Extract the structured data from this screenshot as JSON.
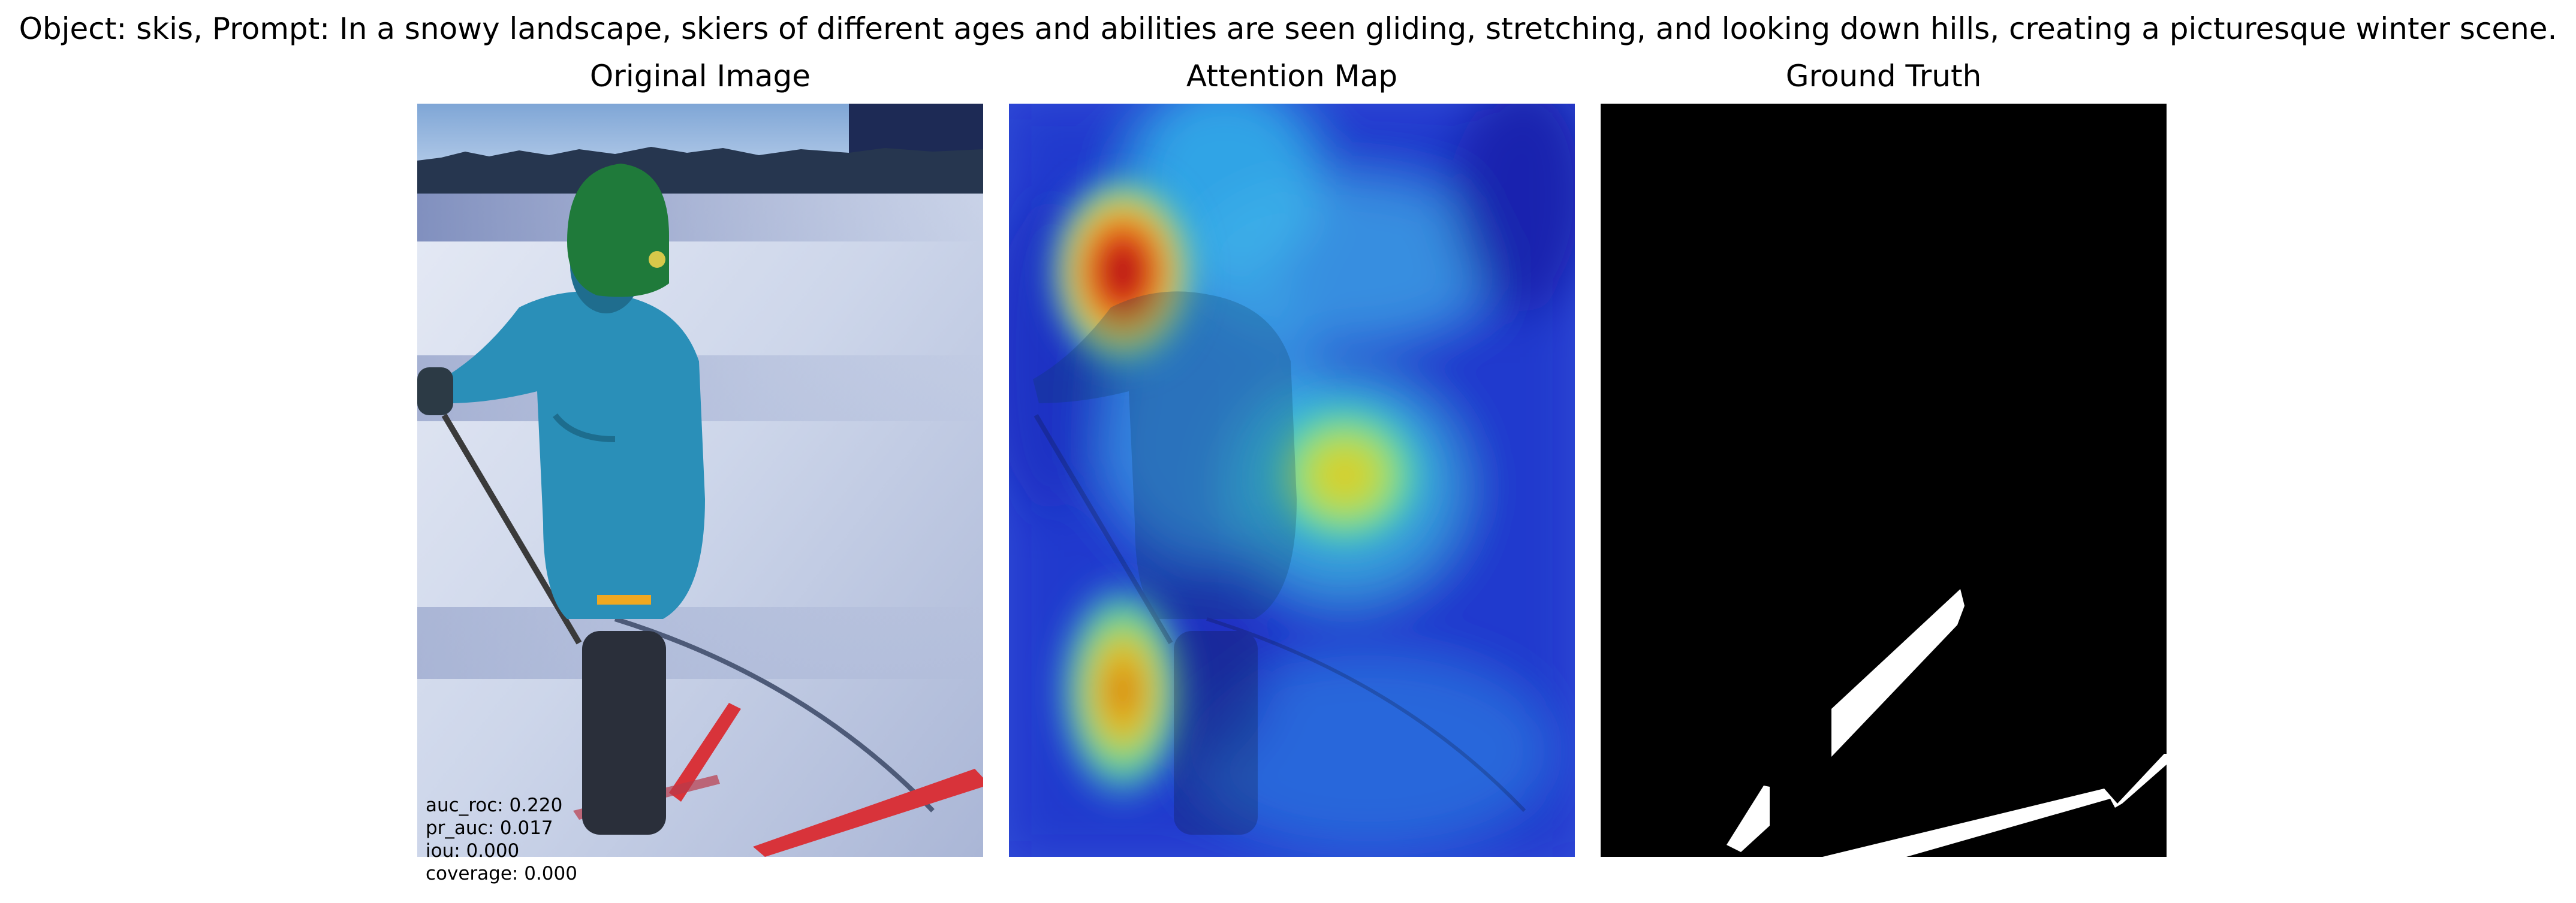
{
  "suptitle": "Object: skis, Prompt: In a snowy landscape, skiers of different ages and abilities are seen gliding, stretching, and looking down hills, creating a picturesque winter scene.",
  "panels": {
    "original": {
      "title": "Original Image"
    },
    "attention": {
      "title": "Attention Map"
    },
    "truth": {
      "title": "Ground Truth"
    }
  },
  "metrics": {
    "auc_roc": "auc_roc: 0.220",
    "pr_auc": "pr_auc: 0.017",
    "iou": "iou: 0.000",
    "coverage": "coverage: 0.000"
  },
  "colors": {
    "sky": "#9fc3e8",
    "snow": "#dde3f0",
    "jacket": "#2a8fb8",
    "hat": "#1f7a3a",
    "ski": "#d8333a",
    "heat_low": "#1a2fd8",
    "heat_high": "#c8001a",
    "mask_bg": "#000000",
    "mask_fg": "#ffffff"
  }
}
